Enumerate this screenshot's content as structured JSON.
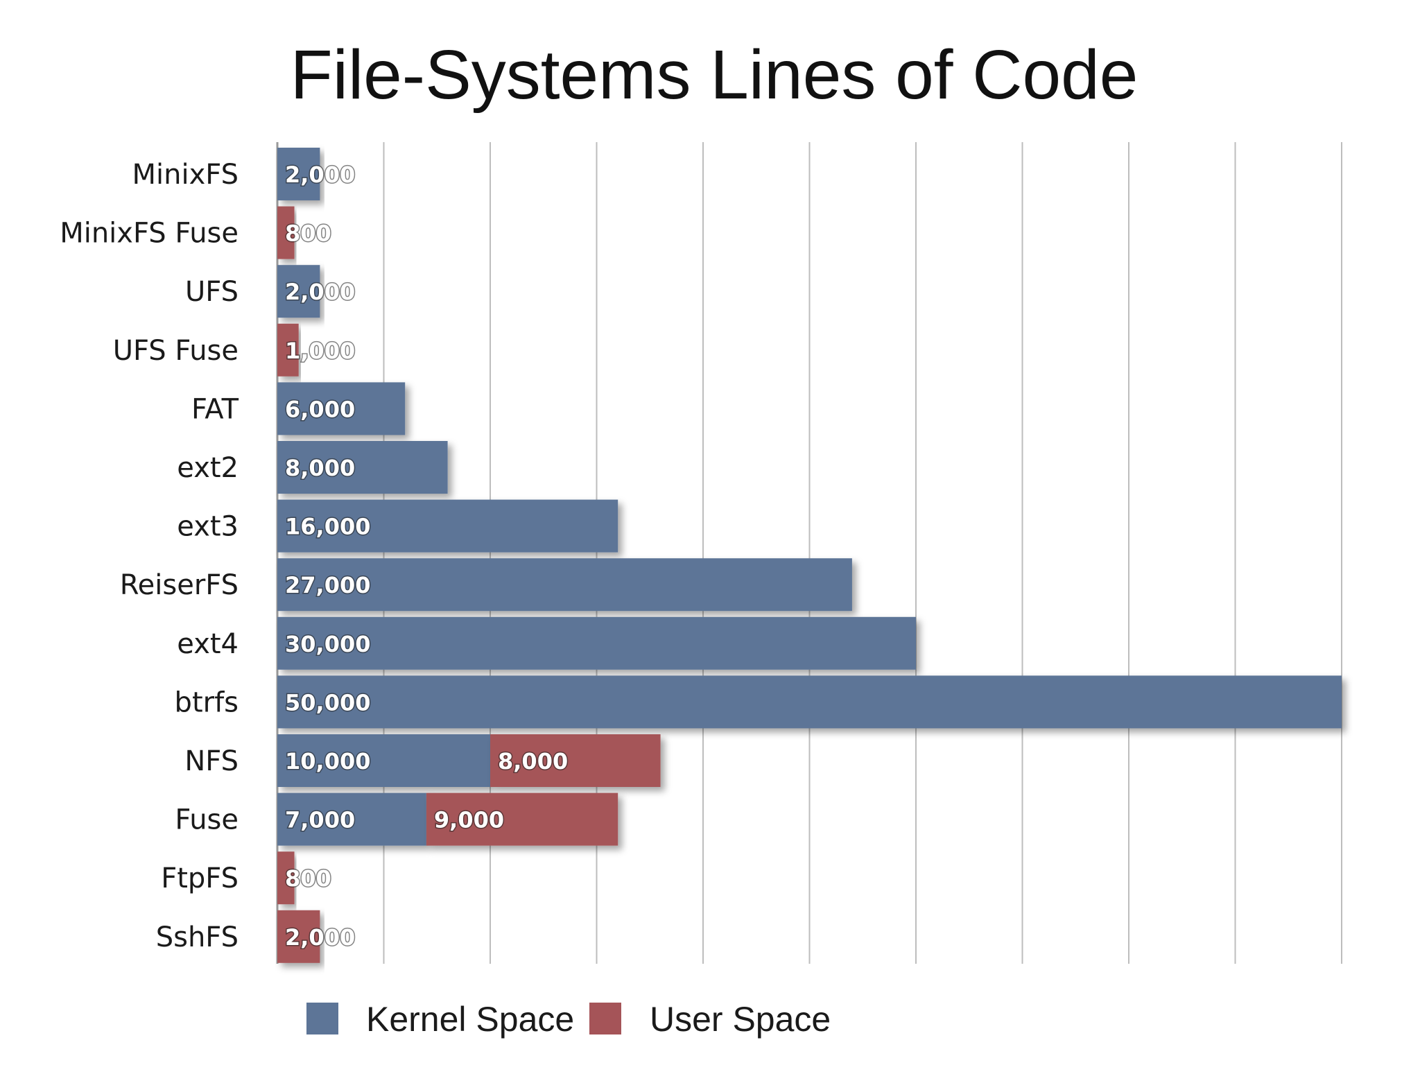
{
  "chart_data": {
    "type": "bar",
    "orientation": "horizontal",
    "stacked": true,
    "title": "File-Systems Lines of Code",
    "xlim": [
      0,
      50000
    ],
    "grid": true,
    "legend_position": "bottom",
    "categories": [
      "MinixFS",
      "MinixFS Fuse",
      "UFS",
      "UFS Fuse",
      "FAT",
      "ext2",
      "ext3",
      "ReiserFS",
      "ext4",
      "btrfs",
      "NFS",
      "Fuse",
      "FtpFS",
      "SshFS"
    ],
    "series": [
      {
        "name": "Kernel Space",
        "color": "#5d7597",
        "values": [
          2000,
          null,
          2000,
          null,
          6000,
          8000,
          16000,
          27000,
          30000,
          50000,
          10000,
          7000,
          null,
          null
        ],
        "labels": [
          "2,000",
          "",
          "2,000",
          "",
          "6,000",
          "8,000",
          "16,000",
          "27,000",
          "30,000",
          "50,000",
          "10,000",
          "7,000",
          "",
          ""
        ]
      },
      {
        "name": "User Space",
        "color": "#a55458",
        "values": [
          null,
          800,
          null,
          1000,
          null,
          null,
          null,
          null,
          null,
          null,
          8000,
          9000,
          800,
          2000
        ],
        "labels": [
          "",
          "800",
          "",
          "1,000",
          "",
          "",
          "",
          "",
          "",
          "",
          "8,000",
          "9,000",
          "800",
          "2,000"
        ]
      }
    ]
  }
}
